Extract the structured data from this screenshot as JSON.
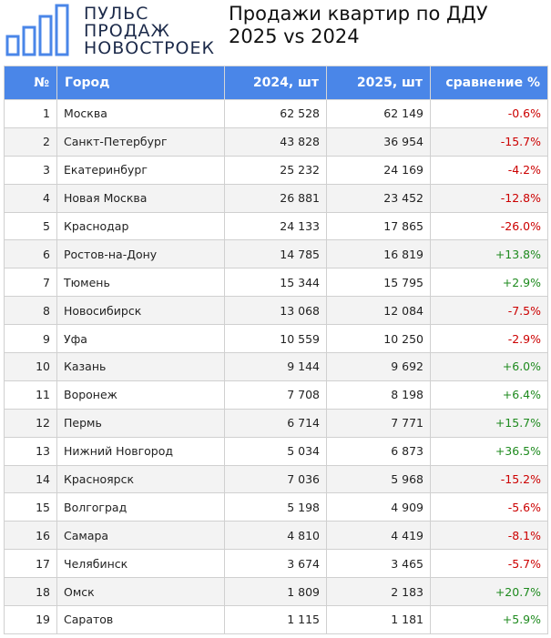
{
  "logo": {
    "lines": [
      "ПУЛЬС",
      "ПРОДАЖ",
      "НОВОСТРОЕК"
    ],
    "colors": {
      "text": "#1c2a4a",
      "bars": "#4a86e8"
    }
  },
  "title": {
    "line1": "Продажи квартир по ДДУ",
    "line2": "2025 vs 2024"
  },
  "table": {
    "headers": {
      "num": "№",
      "city": "Город",
      "y2024": "2024, шт",
      "y2025": "2025, шт",
      "compare": "сравнение %"
    },
    "header_color": "#4a86e8",
    "negative_color": "#cc0000",
    "positive_color": "#1e8a1e",
    "rows": [
      {
        "num": "1",
        "city": "Москва",
        "y2024": "62 528",
        "y2025": "62 149",
        "compare": "-0.6%"
      },
      {
        "num": "2",
        "city": "Санкт-Петербург",
        "y2024": "43 828",
        "y2025": "36 954",
        "compare": "-15.7%"
      },
      {
        "num": "3",
        "city": "Екатеринбург",
        "y2024": "25 232",
        "y2025": "24 169",
        "compare": "-4.2%"
      },
      {
        "num": "4",
        "city": "Новая Москва",
        "y2024": "26 881",
        "y2025": "23 452",
        "compare": "-12.8%"
      },
      {
        "num": "5",
        "city": "Краснодар",
        "y2024": "24 133",
        "y2025": "17 865",
        "compare": "-26.0%"
      },
      {
        "num": "6",
        "city": "Ростов-на-Дону",
        "y2024": "14 785",
        "y2025": "16 819",
        "compare": "+13.8%"
      },
      {
        "num": "7",
        "city": "Тюмень",
        "y2024": "15 344",
        "y2025": "15 795",
        "compare": "+2.9%"
      },
      {
        "num": "8",
        "city": "Новосибирск",
        "y2024": "13 068",
        "y2025": "12 084",
        "compare": "-7.5%"
      },
      {
        "num": "9",
        "city": "Уфа",
        "y2024": "10 559",
        "y2025": "10 250",
        "compare": "-2.9%"
      },
      {
        "num": "10",
        "city": "Казань",
        "y2024": "9 144",
        "y2025": "9 692",
        "compare": "+6.0%"
      },
      {
        "num": "11",
        "city": "Воронеж",
        "y2024": "7 708",
        "y2025": "8 198",
        "compare": "+6.4%"
      },
      {
        "num": "12",
        "city": "Пермь",
        "y2024": "6 714",
        "y2025": "7 771",
        "compare": "+15.7%"
      },
      {
        "num": "13",
        "city": "Нижний Новгород",
        "y2024": "5 034",
        "y2025": "6 873",
        "compare": "+36.5%"
      },
      {
        "num": "14",
        "city": "Красноярск",
        "y2024": "7 036",
        "y2025": "5 968",
        "compare": "-15.2%"
      },
      {
        "num": "15",
        "city": "Волгоград",
        "y2024": "5 198",
        "y2025": "4 909",
        "compare": "-5.6%"
      },
      {
        "num": "16",
        "city": "Самара",
        "y2024": "4 810",
        "y2025": "4 419",
        "compare": "-8.1%"
      },
      {
        "num": "17",
        "city": "Челябинск",
        "y2024": "3 674",
        "y2025": "3 465",
        "compare": "-5.7%"
      },
      {
        "num": "18",
        "city": "Омск",
        "y2024": "1 809",
        "y2025": "2 183",
        "compare": "+20.7%"
      },
      {
        "num": "19",
        "city": "Саратов",
        "y2024": "1 115",
        "y2025": "1 181",
        "compare": "+5.9%"
      }
    ]
  }
}
